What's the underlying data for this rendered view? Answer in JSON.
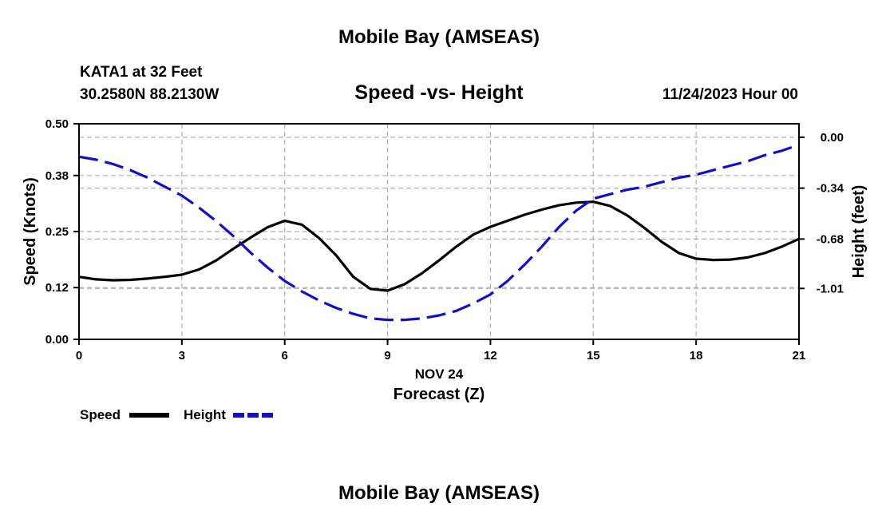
{
  "header": {
    "title": "Mobile Bay (AMSEAS)",
    "station": "KATA1 at 32 Feet",
    "coords": "30.2580N  88.2130W",
    "chart_title": "Speed -vs- Height",
    "date": "11/24/2023 Hour 00"
  },
  "footer": {
    "title": "Mobile Bay (AMSEAS)"
  },
  "chart_data": {
    "type": "line",
    "title": "Speed -vs- Height",
    "xlabel": "Forecast (Z)",
    "xsublabel": "NOV 24",
    "ylabel": "Speed (Knots)",
    "y2label": "Height (feet)",
    "x": [
      0,
      0.5,
      1,
      1.5,
      2,
      2.5,
      3,
      3.5,
      4,
      4.5,
      5,
      5.5,
      6,
      6.5,
      7,
      7.5,
      8,
      8.5,
      9,
      9.5,
      10,
      10.5,
      11,
      11.5,
      12,
      12.5,
      13,
      13.5,
      14,
      14.5,
      15,
      15.5,
      16,
      16.5,
      17,
      17.5,
      18,
      18.5,
      19,
      19.5,
      20,
      20.5,
      21
    ],
    "xlim": [
      0,
      21
    ],
    "xticks": [
      "0",
      "3",
      "6",
      "9",
      "12",
      "15",
      "18",
      "21"
    ],
    "ylim": [
      0,
      0.5
    ],
    "yticks": [
      "0.00",
      "0.12",
      "0.25",
      "0.38",
      "0.50"
    ],
    "y2lim": [
      -1.35,
      0.09
    ],
    "y2ticks": [
      "0.00",
      "-0.34",
      "-0.68",
      "-1.01"
    ],
    "grid": true,
    "legend_position": "bottom-left",
    "series": [
      {
        "name": "Speed",
        "axis": "left",
        "color": "#000000",
        "style": "solid",
        "values": [
          0.145,
          0.139,
          0.137,
          0.138,
          0.141,
          0.145,
          0.15,
          0.162,
          0.183,
          0.21,
          0.236,
          0.26,
          0.275,
          0.266,
          0.235,
          0.195,
          0.145,
          0.117,
          0.113,
          0.128,
          0.153,
          0.183,
          0.215,
          0.243,
          0.261,
          0.275,
          0.289,
          0.301,
          0.311,
          0.317,
          0.319,
          0.309,
          0.287,
          0.258,
          0.226,
          0.2,
          0.187,
          0.184,
          0.185,
          0.19,
          0.2,
          0.215,
          0.233
        ]
      },
      {
        "name": "Height",
        "axis": "right",
        "color": "#1010cc",
        "style": "dashed",
        "values": [
          -0.13,
          -0.15,
          -0.18,
          -0.22,
          -0.27,
          -0.33,
          -0.39,
          -0.47,
          -0.56,
          -0.66,
          -0.77,
          -0.87,
          -0.96,
          -1.03,
          -1.09,
          -1.14,
          -1.18,
          -1.21,
          -1.22,
          -1.22,
          -1.21,
          -1.19,
          -1.16,
          -1.11,
          -1.05,
          -0.96,
          -0.85,
          -0.73,
          -0.6,
          -0.49,
          -0.41,
          -0.38,
          -0.35,
          -0.33,
          -0.3,
          -0.27,
          -0.25,
          -0.22,
          -0.19,
          -0.16,
          -0.12,
          -0.09,
          -0.05
        ]
      }
    ]
  }
}
